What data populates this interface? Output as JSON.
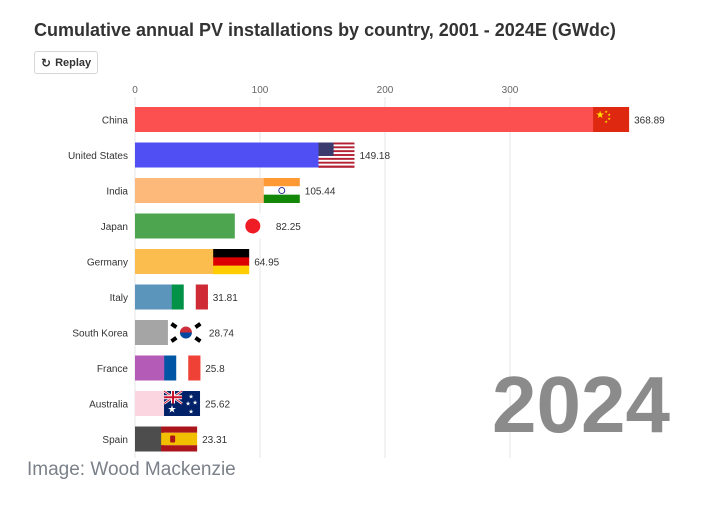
{
  "header": {
    "title": "Cumulative annual PV installations by country, 2001 - 2024E (GWdc)",
    "replay_label": "Replay",
    "replay_icon": "replay-icon"
  },
  "credit": "Image: Wood Mackenzie",
  "chart_data": {
    "type": "bar",
    "orientation": "horizontal",
    "title": "Cumulative annual PV installations by country, 2001 - 2024E (GWdc)",
    "xlim": [
      0,
      370
    ],
    "x_ticks": [
      0,
      100,
      200,
      300
    ],
    "grid": true,
    "year_label": "2024",
    "categories": [
      "China",
      "United States",
      "India",
      "Japan",
      "Germany",
      "Italy",
      "South Korea",
      "France",
      "Australia",
      "Spain"
    ],
    "values": [
      368.89,
      149.18,
      105.44,
      82.25,
      64.95,
      31.81,
      28.74,
      25.8,
      25.62,
      23.31
    ],
    "value_labels": [
      "368.89",
      "149.18",
      "105.44",
      "82.25",
      "64.95",
      "31.81",
      "28.74",
      "25.8",
      "25.62",
      "23.31"
    ],
    "colors": [
      "#fc4f4f",
      "#4f4ff3",
      "#fdb97a",
      "#4da550",
      "#fbbd4e",
      "#5b95bb",
      "#a5a5a5",
      "#b45ab7",
      "#fbd6e0",
      "#4d4d4d"
    ],
    "flags": [
      "china-flag",
      "usa-flag",
      "india-flag",
      "japan-flag",
      "germany-flag",
      "italy-flag",
      "south-korea-flag",
      "france-flag",
      "australia-flag",
      "spain-flag"
    ]
  }
}
